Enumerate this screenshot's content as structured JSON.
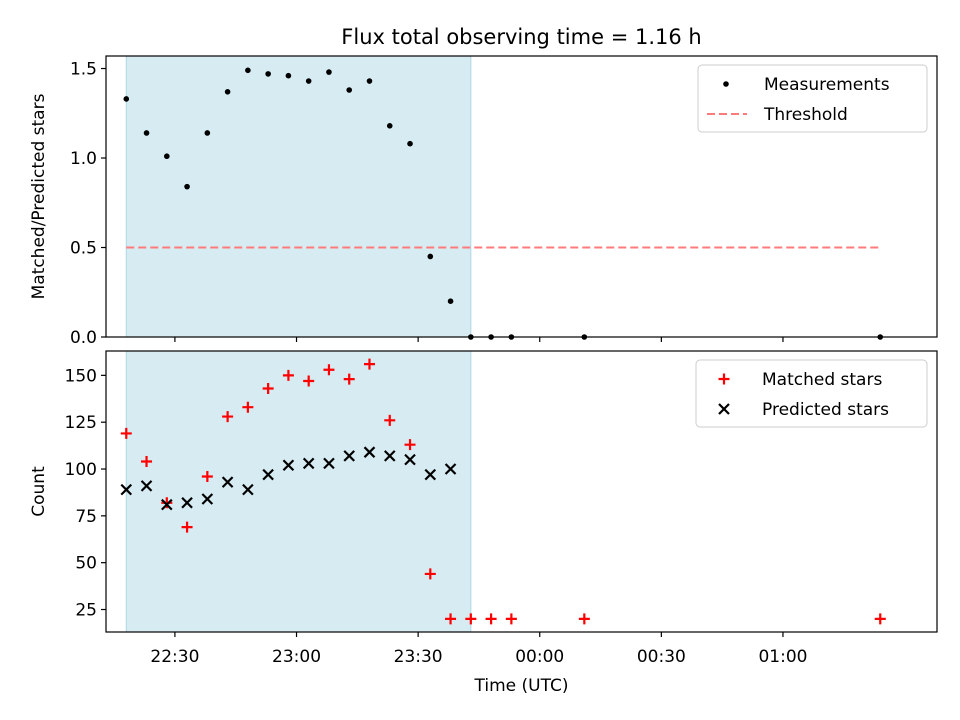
{
  "chart_data": [
    {
      "type": "scatter",
      "title": "Flux total observing time = 1.16 h",
      "xlabel": "",
      "ylabel": "Matched/Predicted stars",
      "x_type": "time",
      "x_range": [
        "22:13",
        "01:38"
      ],
      "ylim": [
        0.0,
        1.57
      ],
      "yticks": [
        "0.0",
        "0.5",
        "1.0",
        "1.5"
      ],
      "shaded_span": [
        "22:18",
        "23:43"
      ],
      "series": [
        {
          "name": "Measurements",
          "marker": "dot",
          "color": "#000000",
          "points": [
            {
              "x": "22:18",
              "y": 1.33
            },
            {
              "x": "22:23",
              "y": 1.14
            },
            {
              "x": "22:28",
              "y": 1.01
            },
            {
              "x": "22:33",
              "y": 0.84
            },
            {
              "x": "22:38",
              "y": 1.14
            },
            {
              "x": "22:43",
              "y": 1.37
            },
            {
              "x": "22:48",
              "y": 1.49
            },
            {
              "x": "22:53",
              "y": 1.47
            },
            {
              "x": "22:58",
              "y": 1.46
            },
            {
              "x": "23:03",
              "y": 1.43
            },
            {
              "x": "23:08",
              "y": 1.48
            },
            {
              "x": "23:13",
              "y": 1.38
            },
            {
              "x": "23:18",
              "y": 1.43
            },
            {
              "x": "23:23",
              "y": 1.18
            },
            {
              "x": "23:28",
              "y": 1.08
            },
            {
              "x": "23:33",
              "y": 0.45
            },
            {
              "x": "23:38",
              "y": 0.2
            },
            {
              "x": "23:43",
              "y": 0.0
            },
            {
              "x": "23:48",
              "y": 0.0
            },
            {
              "x": "23:53",
              "y": 0.0
            },
            {
              "x": "00:11",
              "y": 0.0
            },
            {
              "x": "01:24",
              "y": 0.0
            }
          ]
        },
        {
          "name": "Threshold",
          "marker": "dashed-line",
          "color": "#ff7b7b",
          "points": [
            {
              "x": "22:18",
              "y": 0.5
            },
            {
              "x": "01:24",
              "y": 0.5
            }
          ]
        }
      ],
      "legend": "top-right"
    },
    {
      "type": "scatter",
      "title": "",
      "xlabel": "Time (UTC)",
      "ylabel": "Count",
      "x_type": "time",
      "x_range": [
        "22:13",
        "01:38"
      ],
      "xticks": [
        "22:30",
        "23:00",
        "23:30",
        "00:00",
        "00:30",
        "01:00"
      ],
      "ylim": [
        13,
        163
      ],
      "yticks": [
        "25",
        "50",
        "75",
        "100",
        "125",
        "150"
      ],
      "shaded_span": [
        "22:18",
        "23:43"
      ],
      "series": [
        {
          "name": "Matched stars",
          "marker": "plus",
          "color": "#ff0000",
          "points": [
            {
              "x": "22:18",
              "y": 119
            },
            {
              "x": "22:23",
              "y": 104
            },
            {
              "x": "22:28",
              "y": 82
            },
            {
              "x": "22:33",
              "y": 69
            },
            {
              "x": "22:38",
              "y": 96
            },
            {
              "x": "22:43",
              "y": 128
            },
            {
              "x": "22:48",
              "y": 133
            },
            {
              "x": "22:53",
              "y": 143
            },
            {
              "x": "22:58",
              "y": 150
            },
            {
              "x": "23:03",
              "y": 147
            },
            {
              "x": "23:08",
              "y": 153
            },
            {
              "x": "23:13",
              "y": 148
            },
            {
              "x": "23:18",
              "y": 156
            },
            {
              "x": "23:23",
              "y": 126
            },
            {
              "x": "23:28",
              "y": 113
            },
            {
              "x": "23:33",
              "y": 44
            },
            {
              "x": "23:38",
              "y": 20
            },
            {
              "x": "23:43",
              "y": 20
            },
            {
              "x": "23:48",
              "y": 20
            },
            {
              "x": "23:53",
              "y": 20
            },
            {
              "x": "00:11",
              "y": 20
            },
            {
              "x": "01:24",
              "y": 20
            }
          ]
        },
        {
          "name": "Predicted stars",
          "marker": "x",
          "color": "#000000",
          "points": [
            {
              "x": "22:18",
              "y": 89
            },
            {
              "x": "22:23",
              "y": 91
            },
            {
              "x": "22:28",
              "y": 81
            },
            {
              "x": "22:33",
              "y": 82
            },
            {
              "x": "22:38",
              "y": 84
            },
            {
              "x": "22:43",
              "y": 93
            },
            {
              "x": "22:48",
              "y": 89
            },
            {
              "x": "22:53",
              "y": 97
            },
            {
              "x": "22:58",
              "y": 102
            },
            {
              "x": "23:03",
              "y": 103
            },
            {
              "x": "23:08",
              "y": 103
            },
            {
              "x": "23:13",
              "y": 107
            },
            {
              "x": "23:18",
              "y": 109
            },
            {
              "x": "23:23",
              "y": 107
            },
            {
              "x": "23:28",
              "y": 105
            },
            {
              "x": "23:33",
              "y": 97
            },
            {
              "x": "23:38",
              "y": 100
            }
          ]
        }
      ],
      "legend": "top-right"
    }
  ]
}
